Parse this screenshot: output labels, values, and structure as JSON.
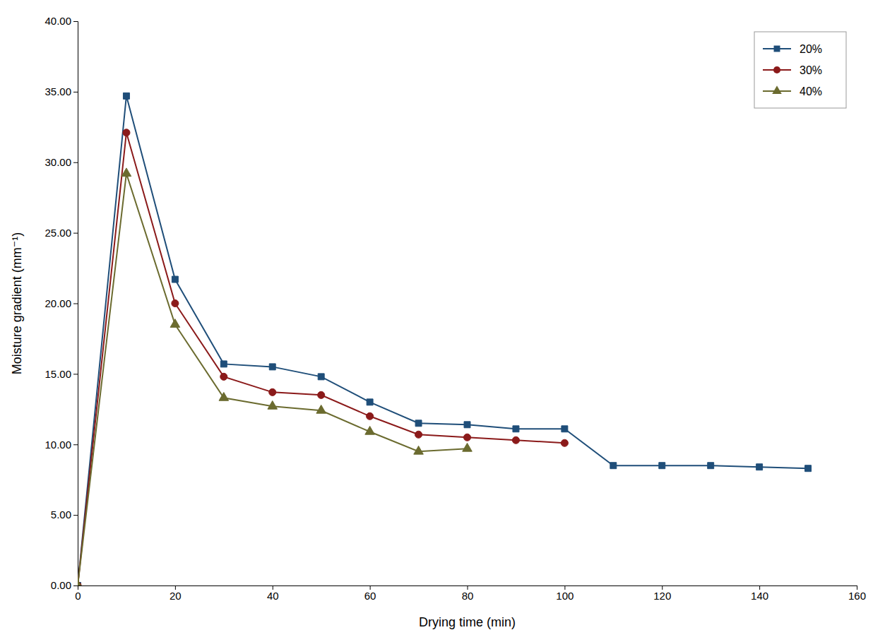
{
  "chart_data": {
    "type": "line",
    "xlabel": "Drying time (min)",
    "ylabel": "Moisture gradient (mm⁻¹)",
    "series": [
      {
        "name": "20%",
        "color": "#1f4e79",
        "marker": "square",
        "x": [
          0,
          10,
          20,
          30,
          40,
          50,
          60,
          70,
          80,
          90,
          100,
          110,
          120,
          130,
          140,
          150
        ],
        "values": [
          0.0,
          34.7,
          21.7,
          15.7,
          15.5,
          14.8,
          13.0,
          11.5,
          11.4,
          11.1,
          11.1,
          8.5,
          8.5,
          8.5,
          8.4,
          8.3
        ]
      },
      {
        "name": "30%",
        "color": "#8b1a1a",
        "marker": "circle",
        "x": [
          0,
          10,
          20,
          30,
          40,
          50,
          60,
          70,
          80,
          90,
          100
        ],
        "values": [
          0.0,
          32.1,
          20.0,
          14.8,
          13.7,
          13.5,
          12.0,
          10.7,
          10.5,
          10.3,
          10.1
        ]
      },
      {
        "name": "40%",
        "color": "#6b6b2f",
        "marker": "triangle",
        "x": [
          0,
          10,
          20,
          30,
          40,
          50,
          60,
          70,
          80
        ],
        "values": [
          0.0,
          29.2,
          18.5,
          13.3,
          12.7,
          12.4,
          10.9,
          9.5,
          9.7
        ]
      }
    ],
    "xlim": [
      0,
      160
    ],
    "ylim": [
      0.0,
      40.0
    ],
    "xticks": [
      0,
      20,
      40,
      60,
      80,
      100,
      120,
      140,
      160
    ],
    "yticks": [
      {
        "value": 0.0,
        "label": "0.00"
      },
      {
        "value": 5.0,
        "label": "5.00"
      },
      {
        "value": 10.0,
        "label": "10.00"
      },
      {
        "value": 15.0,
        "label": "15.00"
      },
      {
        "value": 20.0,
        "label": "20.00"
      },
      {
        "value": 25.0,
        "label": "25.00"
      },
      {
        "value": 30.0,
        "label": "30.00"
      },
      {
        "value": 35.0,
        "label": "35.00"
      },
      {
        "value": 40.0,
        "label": "40.00"
      }
    ],
    "legend": "upper right",
    "grid": false
  }
}
